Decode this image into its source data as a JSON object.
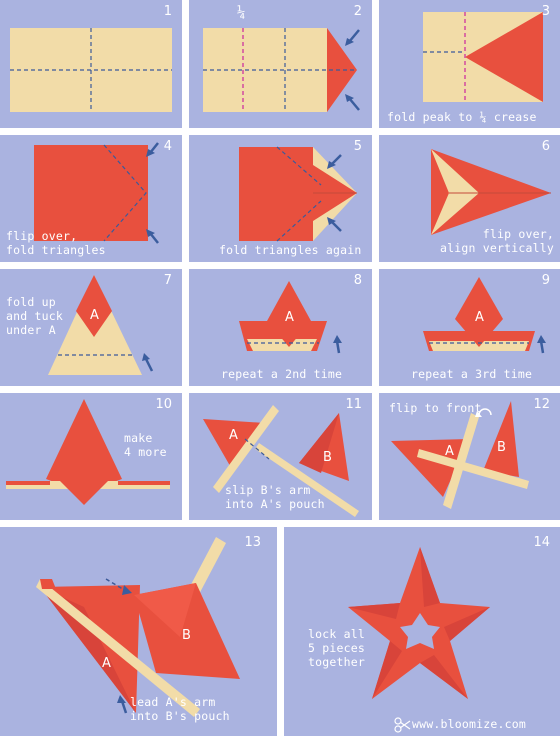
{
  "colors": {
    "background": "#aab3e0",
    "paper_red": "#e8503e",
    "paper_cream": "#f2dca8",
    "crease_blue": "#3c5a9a",
    "crease_pink": "#d24aa0",
    "arrow_blue": "#3b5d9e"
  },
  "icons": [
    "arrow-icon",
    "flip-icon",
    "scissors-icon"
  ],
  "steps": [
    {
      "number": "1",
      "caption": ""
    },
    {
      "number": "2",
      "caption": "",
      "mark": "¼"
    },
    {
      "number": "3",
      "caption": "fold peak to ¼ crease"
    },
    {
      "number": "4",
      "caption": "flip over,\nfold triangles"
    },
    {
      "number": "5",
      "caption": "fold triangles again"
    },
    {
      "number": "6",
      "caption": "flip over,\nalign vertically"
    },
    {
      "number": "7",
      "caption": "fold up\nand tuck\nunder A",
      "label_a": "A"
    },
    {
      "number": "8",
      "caption": "repeat a 2nd time",
      "label_a": "A"
    },
    {
      "number": "9",
      "caption": "repeat a 3rd time",
      "label_a": "A"
    },
    {
      "number": "10",
      "caption": "make\n4 more"
    },
    {
      "number": "11",
      "caption": "slip B's arm\ninto A's pouch",
      "label_a": "A",
      "label_b": "B"
    },
    {
      "number": "12",
      "caption": "flip to front",
      "label_a": "A",
      "label_b": "B"
    },
    {
      "number": "13",
      "caption": "lead A's arm\ninto B's pouch",
      "label_a": "A",
      "label_b": "B"
    },
    {
      "number": "14",
      "caption": "lock all\n5 pieces\ntogether"
    }
  ],
  "footer": {
    "site": "www.bloomize.com"
  }
}
